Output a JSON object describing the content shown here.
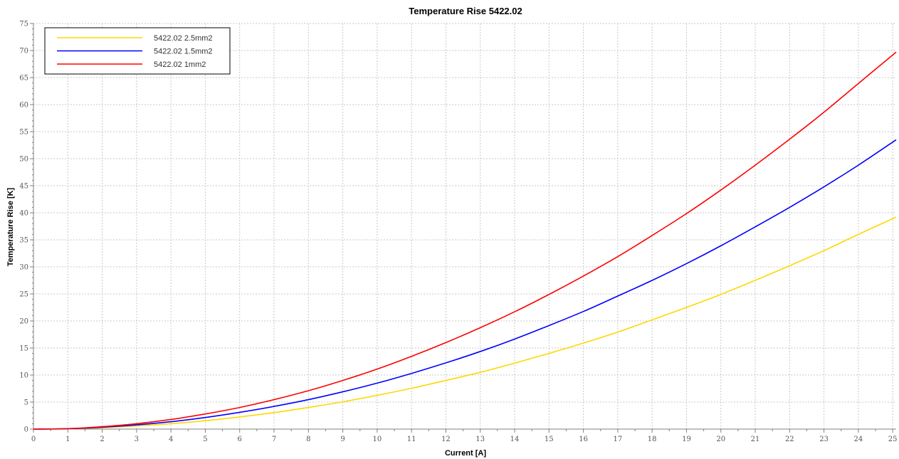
{
  "chart_data": {
    "type": "line",
    "title": "Temperature Rise 5422.02",
    "xlabel": "Current [A]",
    "ylabel": "Temperature Rise [K]",
    "xlim": [
      0,
      25.1
    ],
    "ylim": [
      0,
      75
    ],
    "x_ticks": [
      0,
      1,
      2,
      3,
      4,
      5,
      6,
      7,
      8,
      9,
      10,
      11,
      12,
      13,
      14,
      15,
      16,
      17,
      18,
      19,
      20,
      21,
      22,
      23,
      24,
      25
    ],
    "y_ticks": [
      0,
      5,
      10,
      15,
      20,
      25,
      30,
      35,
      40,
      45,
      50,
      55,
      60,
      65,
      70,
      75
    ],
    "grid": true,
    "legend_position": "top-left",
    "x": [
      0,
      1,
      2,
      3,
      4,
      5,
      6,
      7,
      8,
      9,
      10,
      11,
      12,
      13,
      14,
      15,
      16,
      17,
      18,
      19,
      20,
      21,
      22,
      23,
      24,
      25.1
    ],
    "series": [
      {
        "name": "5422.02 2.5mm2",
        "color": "#FFD700",
        "values": [
          0,
          0.06,
          0.25,
          0.6,
          1.0,
          1.55,
          2.25,
          3.05,
          4.0,
          5.05,
          6.25,
          7.55,
          9.0,
          10.5,
          12.2,
          14.0,
          15.9,
          17.95,
          20.2,
          22.5,
          24.9,
          27.5,
          30.2,
          33.0,
          36.0,
          39.2
        ]
      },
      {
        "name": "5422.02 1.5mm2",
        "color": "#0000FF",
        "values": [
          0,
          0.08,
          0.35,
          0.78,
          1.37,
          2.15,
          3.1,
          4.2,
          5.45,
          6.9,
          8.5,
          10.3,
          12.25,
          14.35,
          16.65,
          19.15,
          21.75,
          24.6,
          27.5,
          30.6,
          33.9,
          37.4,
          41.0,
          44.8,
          48.8,
          53.5
        ]
      },
      {
        "name": "5422.02 1mm2",
        "color": "#FF0000",
        "values": [
          0,
          0.1,
          0.45,
          1.0,
          1.78,
          2.8,
          4.0,
          5.45,
          7.1,
          9.0,
          11.1,
          13.45,
          16.0,
          18.75,
          21.7,
          24.9,
          28.3,
          31.9,
          35.8,
          39.85,
          44.2,
          48.8,
          53.6,
          58.6,
          63.9,
          69.7
        ]
      }
    ]
  }
}
